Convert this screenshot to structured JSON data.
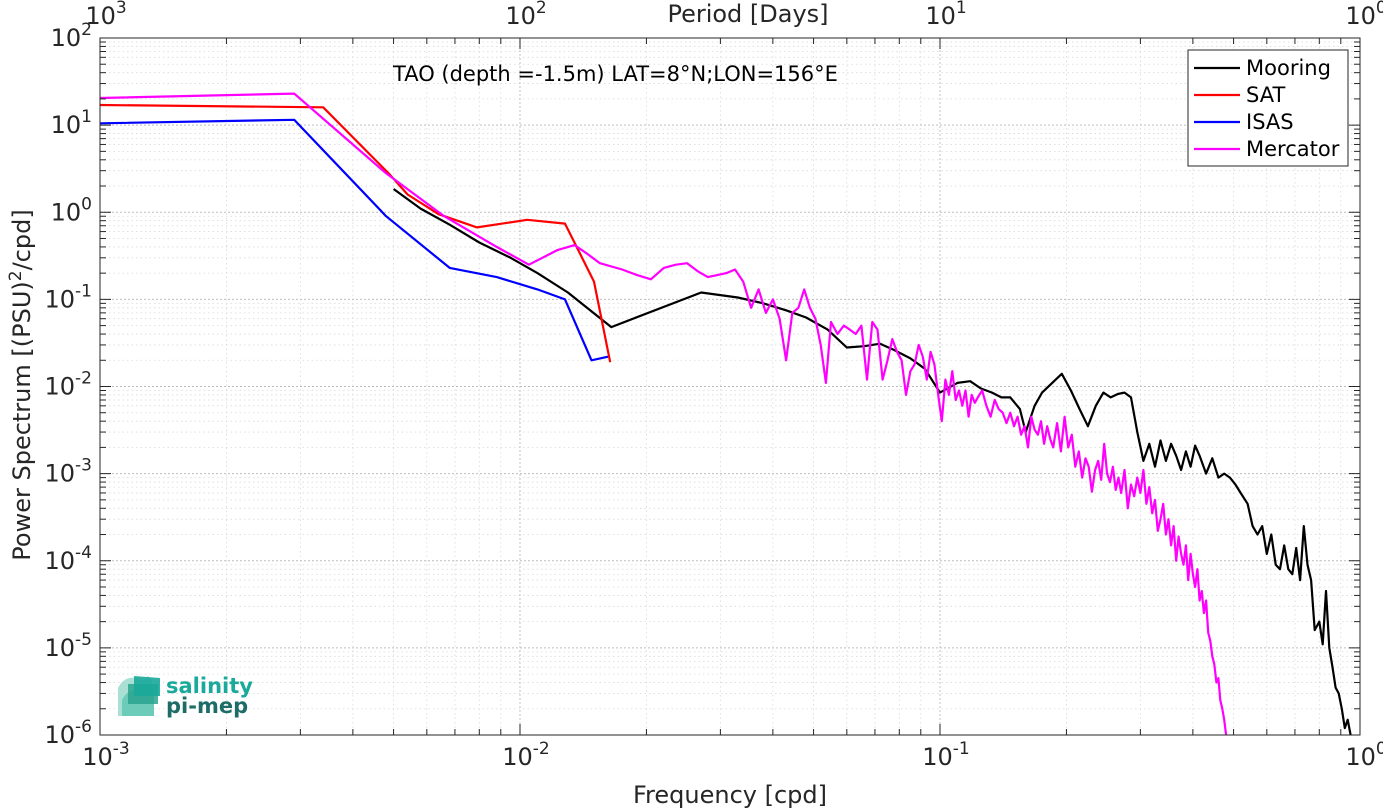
{
  "logo": {
    "line1": "salinity",
    "line2": "pi-mep",
    "colors": [
      "#1aa99a",
      "#2aa58f",
      "#6ccbb9",
      "#a9e0d3",
      "#1d6d66"
    ]
  },
  "chart_data": {
    "type": "line",
    "annotation": "TAO (depth =-1.5m) LAT=8°N;LON=156°E",
    "xlabel": "Frequency [cpd]",
    "ylabel": "Power Spectrum [(PSU)",
    "ylabel_sup": "2",
    "ylabel_tail": "/cpd]",
    "x2label": "Period [Days]",
    "xscale": "log",
    "yscale": "log",
    "xlim": [
      0.001,
      1
    ],
    "ylim": [
      1e-06,
      100
    ],
    "x2lim": [
      1000,
      1
    ],
    "grid": true,
    "legend_position": "top-right",
    "xticks": [
      {
        "base": "10",
        "exp": "-3"
      },
      {
        "base": "10",
        "exp": "-2"
      },
      {
        "base": "10",
        "exp": "-1"
      },
      {
        "base": "10",
        "exp": "0"
      }
    ],
    "x2ticks": [
      {
        "base": "10",
        "exp": "3"
      },
      {
        "base": "10",
        "exp": "2"
      },
      {
        "base": "10",
        "exp": "1"
      },
      {
        "base": "10",
        "exp": "0"
      }
    ],
    "yticks": [
      {
        "base": "10",
        "exp": "-6"
      },
      {
        "base": "10",
        "exp": "-5"
      },
      {
        "base": "10",
        "exp": "-4"
      },
      {
        "base": "10",
        "exp": "-3"
      },
      {
        "base": "10",
        "exp": "-2"
      },
      {
        "base": "10",
        "exp": "-1"
      },
      {
        "base": "10",
        "exp": "0"
      },
      {
        "base": "10",
        "exp": "1"
      },
      {
        "base": "10",
        "exp": "2"
      }
    ],
    "series": [
      {
        "name": "Mooring",
        "color": "#000000",
        "points": [
          [
            0.005,
            1.85
          ],
          [
            0.0058,
            1.1
          ],
          [
            0.0068,
            0.72
          ],
          [
            0.008,
            0.45
          ],
          [
            0.0095,
            0.3
          ],
          [
            0.011,
            0.2
          ],
          [
            0.013,
            0.12
          ],
          [
            0.0165,
            0.048
          ],
          [
            0.027,
            0.12
          ],
          [
            0.033,
            0.105
          ],
          [
            0.038,
            0.09
          ],
          [
            0.043,
            0.075
          ],
          [
            0.048,
            0.062
          ],
          [
            0.054,
            0.045
          ],
          [
            0.06,
            0.028
          ],
          [
            0.066,
            0.029
          ],
          [
            0.072,
            0.031
          ],
          [
            0.078,
            0.026
          ],
          [
            0.085,
            0.021
          ],
          [
            0.092,
            0.016
          ],
          [
            0.1,
            0.0085
          ],
          [
            0.11,
            0.011
          ],
          [
            0.118,
            0.0115
          ],
          [
            0.125,
            0.0095
          ],
          [
            0.133,
            0.0085
          ],
          [
            0.14,
            0.0075
          ],
          [
            0.147,
            0.0075
          ],
          [
            0.155,
            0.0055
          ],
          [
            0.16,
            0.003
          ],
          [
            0.168,
            0.006
          ],
          [
            0.175,
            0.0085
          ],
          [
            0.185,
            0.011
          ],
          [
            0.195,
            0.014
          ],
          [
            0.205,
            0.009
          ],
          [
            0.215,
            0.0055
          ],
          [
            0.225,
            0.0035
          ],
          [
            0.235,
            0.006
          ],
          [
            0.245,
            0.0085
          ],
          [
            0.255,
            0.0075
          ],
          [
            0.265,
            0.0082
          ],
          [
            0.275,
            0.0085
          ],
          [
            0.285,
            0.0075
          ],
          [
            0.295,
            0.003
          ],
          [
            0.305,
            0.0014
          ],
          [
            0.315,
            0.0022
          ],
          [
            0.325,
            0.0012
          ],
          [
            0.335,
            0.0024
          ],
          [
            0.345,
            0.0014
          ],
          [
            0.355,
            0.0022
          ],
          [
            0.365,
            0.0016
          ],
          [
            0.375,
            0.0011
          ],
          [
            0.385,
            0.0018
          ],
          [
            0.395,
            0.0012
          ],
          [
            0.405,
            0.0021
          ],
          [
            0.415,
            0.0016
          ],
          [
            0.43,
            0.001
          ],
          [
            0.445,
            0.0015
          ],
          [
            0.46,
            0.0009
          ],
          [
            0.475,
            0.001
          ],
          [
            0.49,
            0.0009
          ],
          [
            0.505,
            0.00075
          ],
          [
            0.52,
            0.0006
          ],
          [
            0.54,
            0.00045
          ],
          [
            0.555,
            0.00025
          ],
          [
            0.57,
            0.0002
          ],
          [
            0.585,
            0.00025
          ],
          [
            0.6,
            0.00012
          ],
          [
            0.615,
            0.0002
          ],
          [
            0.63,
            9e-05
          ],
          [
            0.645,
            8e-05
          ],
          [
            0.66,
            0.00015
          ],
          [
            0.675,
            8e-05
          ],
          [
            0.69,
            7e-05
          ],
          [
            0.705,
            0.00014
          ],
          [
            0.72,
            6e-05
          ],
          [
            0.735,
            0.00025
          ],
          [
            0.75,
            9e-05
          ],
          [
            0.765,
            6e-05
          ],
          [
            0.78,
            1.6e-05
          ],
          [
            0.8,
            2e-05
          ],
          [
            0.815,
            1.1e-05
          ],
          [
            0.83,
            4.5e-05
          ],
          [
            0.845,
            1e-05
          ],
          [
            0.86,
            6e-06
          ],
          [
            0.875,
            3.5e-06
          ],
          [
            0.89,
            3e-06
          ],
          [
            0.905,
            2e-06
          ],
          [
            0.92,
            1.2e-06
          ],
          [
            0.935,
            1.5e-06
          ],
          [
            0.95,
            1e-06
          ]
        ]
      },
      {
        "name": "SAT",
        "color": "#ff0000",
        "points": [
          [
            0.001,
            17
          ],
          [
            0.0034,
            16
          ],
          [
            0.0049,
            2.7
          ],
          [
            0.0054,
            1.6
          ],
          [
            0.0064,
            0.95
          ],
          [
            0.0079,
            0.67
          ],
          [
            0.0104,
            0.82
          ],
          [
            0.0128,
            0.74
          ],
          [
            0.015,
            0.16
          ],
          [
            0.0164,
            0.019
          ]
        ]
      },
      {
        "name": "ISAS",
        "color": "#0000ff",
        "points": [
          [
            0.001,
            10.5
          ],
          [
            0.0029,
            11.5
          ],
          [
            0.0048,
            0.9
          ],
          [
            0.0068,
            0.23
          ],
          [
            0.0088,
            0.18
          ],
          [
            0.011,
            0.13
          ],
          [
            0.0128,
            0.1
          ],
          [
            0.0148,
            0.02
          ],
          [
            0.0162,
            0.022
          ]
        ]
      },
      {
        "name": "Mercator",
        "color": "#ff00ff",
        "points": [
          [
            0.001,
            20.5
          ],
          [
            0.0029,
            23
          ],
          [
            0.0048,
            2.8
          ],
          [
            0.0066,
            0.9
          ],
          [
            0.0088,
            0.4
          ],
          [
            0.0105,
            0.25
          ],
          [
            0.0123,
            0.37
          ],
          [
            0.0135,
            0.42
          ],
          [
            0.0145,
            0.33
          ],
          [
            0.0155,
            0.26
          ],
          [
            0.0175,
            0.22
          ],
          [
            0.019,
            0.19
          ],
          [
            0.0205,
            0.17
          ],
          [
            0.022,
            0.23
          ],
          [
            0.0235,
            0.25
          ],
          [
            0.025,
            0.26
          ],
          [
            0.0265,
            0.21
          ],
          [
            0.028,
            0.18
          ],
          [
            0.0295,
            0.19
          ],
          [
            0.031,
            0.2
          ],
          [
            0.0325,
            0.22
          ],
          [
            0.034,
            0.16
          ],
          [
            0.0355,
            0.08
          ],
          [
            0.037,
            0.13
          ],
          [
            0.0385,
            0.07
          ],
          [
            0.04,
            0.1
          ],
          [
            0.0415,
            0.06
          ],
          [
            0.043,
            0.02
          ],
          [
            0.0445,
            0.07
          ],
          [
            0.046,
            0.08
          ],
          [
            0.0475,
            0.13
          ],
          [
            0.049,
            0.08
          ],
          [
            0.0505,
            0.06
          ],
          [
            0.052,
            0.03
          ],
          [
            0.0535,
            0.011
          ],
          [
            0.055,
            0.055
          ],
          [
            0.057,
            0.04
          ],
          [
            0.059,
            0.05
          ],
          [
            0.061,
            0.045
          ],
          [
            0.063,
            0.04
          ],
          [
            0.065,
            0.05
          ],
          [
            0.067,
            0.012
          ],
          [
            0.069,
            0.055
          ],
          [
            0.071,
            0.045
          ],
          [
            0.073,
            0.012
          ],
          [
            0.075,
            0.02
          ],
          [
            0.077,
            0.035
          ],
          [
            0.079,
            0.025
          ],
          [
            0.081,
            0.02
          ],
          [
            0.083,
            0.008
          ],
          [
            0.085,
            0.015
          ],
          [
            0.087,
            0.018
          ],
          [
            0.089,
            0.03
          ],
          [
            0.091,
            0.022
          ],
          [
            0.093,
            0.012
          ],
          [
            0.095,
            0.025
          ],
          [
            0.097,
            0.018
          ],
          [
            0.099,
            0.008
          ],
          [
            0.101,
            0.004
          ],
          [
            0.103,
            0.012
          ],
          [
            0.105,
            0.008
          ],
          [
            0.107,
            0.015
          ],
          [
            0.109,
            0.007
          ],
          [
            0.111,
            0.009
          ],
          [
            0.113,
            0.006
          ],
          [
            0.115,
            0.009
          ],
          [
            0.117,
            0.0045
          ],
          [
            0.119,
            0.008
          ],
          [
            0.121,
            0.0065
          ],
          [
            0.123,
            0.0075
          ],
          [
            0.126,
            0.009
          ],
          [
            0.129,
            0.006
          ],
          [
            0.132,
            0.0045
          ],
          [
            0.135,
            0.007
          ],
          [
            0.138,
            0.0055
          ],
          [
            0.141,
            0.005
          ],
          [
            0.144,
            0.0038
          ],
          [
            0.147,
            0.005
          ],
          [
            0.15,
            0.0035
          ],
          [
            0.153,
            0.0045
          ],
          [
            0.156,
            0.0028
          ],
          [
            0.159,
            0.0035
          ],
          [
            0.162,
            0.002
          ],
          [
            0.165,
            0.0045
          ],
          [
            0.168,
            0.0032
          ],
          [
            0.171,
            0.0028
          ],
          [
            0.174,
            0.004
          ],
          [
            0.177,
            0.0022
          ],
          [
            0.18,
            0.0035
          ],
          [
            0.183,
            0.0025
          ],
          [
            0.186,
            0.002
          ],
          [
            0.19,
            0.0038
          ],
          [
            0.194,
            0.0018
          ],
          [
            0.198,
            0.0045
          ],
          [
            0.202,
            0.002
          ],
          [
            0.206,
            0.0028
          ],
          [
            0.21,
            0.0012
          ],
          [
            0.214,
            0.0018
          ],
          [
            0.218,
            0.0009
          ],
          [
            0.222,
            0.0015
          ],
          [
            0.226,
            0.0012
          ],
          [
            0.23,
            0.00062
          ],
          [
            0.234,
            0.0011
          ],
          [
            0.238,
            0.0014
          ],
          [
            0.242,
            0.00085
          ],
          [
            0.246,
            0.0022
          ],
          [
            0.25,
            0.001
          ],
          [
            0.254,
            0.0008
          ],
          [
            0.258,
            0.0012
          ],
          [
            0.262,
            0.00065
          ],
          [
            0.266,
            0.0009
          ],
          [
            0.27,
            0.0006
          ],
          [
            0.275,
            0.0011
          ],
          [
            0.28,
            0.0004
          ],
          [
            0.285,
            0.00075
          ],
          [
            0.29,
            0.00055
          ],
          [
            0.295,
            0.0009
          ],
          [
            0.3,
            0.0006
          ],
          [
            0.305,
            0.0011
          ],
          [
            0.31,
            0.00045
          ],
          [
            0.315,
            0.0007
          ],
          [
            0.32,
            0.00035
          ],
          [
            0.325,
            0.0005
          ],
          [
            0.33,
            0.00022
          ],
          [
            0.335,
            0.0003
          ],
          [
            0.34,
            0.00045
          ],
          [
            0.345,
            0.0002
          ],
          [
            0.35,
            0.0003
          ],
          [
            0.355,
            0.00015
          ],
          [
            0.36,
            0.00025
          ],
          [
            0.365,
            0.0001
          ],
          [
            0.37,
            0.00019
          ],
          [
            0.375,
            0.00012
          ],
          [
            0.38,
            9e-05
          ],
          [
            0.385,
            0.00015
          ],
          [
            0.39,
            6e-05
          ],
          [
            0.395,
            0.00012
          ],
          [
            0.4,
            7e-05
          ],
          [
            0.405,
            5e-05
          ],
          [
            0.41,
            8e-05
          ],
          [
            0.415,
            3.5e-05
          ],
          [
            0.42,
            4.5e-05
          ],
          [
            0.425,
            2.5e-05
          ],
          [
            0.43,
            3.5e-05
          ],
          [
            0.435,
            1.5e-05
          ],
          [
            0.44,
            1.2e-05
          ],
          [
            0.445,
            8e-06
          ],
          [
            0.45,
            6.5e-06
          ],
          [
            0.455,
            4e-06
          ],
          [
            0.46,
            4.5e-06
          ],
          [
            0.465,
            2.5e-06
          ],
          [
            0.47,
            2e-06
          ],
          [
            0.475,
            1.5e-06
          ],
          [
            0.48,
            1e-06
          ]
        ]
      }
    ]
  }
}
